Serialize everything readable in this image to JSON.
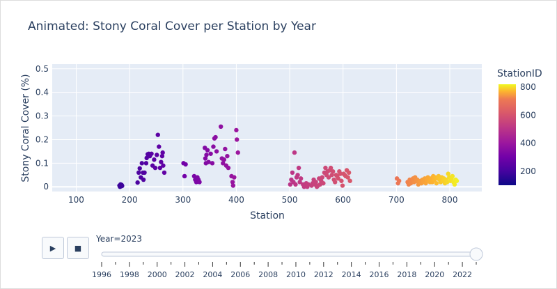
{
  "chart_data": {
    "type": "scatter",
    "title": "Animated: Stony Coral Cover per Station by Year",
    "xlabel": "Station",
    "ylabel": "Stony Coral Cover (%)",
    "xlim": [
      55,
      860
    ],
    "ylim": [
      -0.02,
      0.52
    ],
    "x_ticks": [
      "100",
      "200",
      "300",
      "400",
      "500",
      "600",
      "700",
      "800"
    ],
    "y_ticks": [
      "0",
      "0.1",
      "0.2",
      "0.3",
      "0.4",
      "0.5"
    ],
    "grid": true,
    "colorbar": {
      "title": "StationID",
      "range": [
        100,
        820
      ],
      "ticks": [
        "200",
        "400",
        "600",
        "800"
      ]
    },
    "points": [
      [
        181,
        0.005
      ],
      [
        182,
        0.0
      ],
      [
        183,
        0.01
      ],
      [
        184,
        0.002
      ],
      [
        185,
        0.008
      ],
      [
        186,
        0.004
      ],
      [
        215,
        0.018
      ],
      [
        217,
        0.06
      ],
      [
        219,
        0.078
      ],
      [
        221,
        0.04
      ],
      [
        223,
        0.1
      ],
      [
        225,
        0.06
      ],
      [
        226,
        0.03
      ],
      [
        228,
        0.06
      ],
      [
        231,
        0.1
      ],
      [
        232,
        0.122
      ],
      [
        234,
        0.138
      ],
      [
        236,
        0.14
      ],
      [
        238,
        0.13
      ],
      [
        241,
        0.14
      ],
      [
        243,
        0.09
      ],
      [
        246,
        0.115
      ],
      [
        248,
        0.08
      ],
      [
        251,
        0.135
      ],
      [
        253,
        0.22
      ],
      [
        255,
        0.17
      ],
      [
        257,
        0.08
      ],
      [
        259,
        0.105
      ],
      [
        261,
        0.13
      ],
      [
        262,
        0.145
      ],
      [
        263,
        0.09
      ],
      [
        265,
        0.06
      ],
      [
        301,
        0.1
      ],
      [
        303,
        0.045
      ],
      [
        305,
        0.095
      ],
      [
        321,
        0.045
      ],
      [
        323,
        0.03
      ],
      [
        325,
        0.02
      ],
      [
        327,
        0.04
      ],
      [
        329,
        0.03
      ],
      [
        331,
        0.02
      ],
      [
        341,
        0.165
      ],
      [
        342,
        0.12
      ],
      [
        343,
        0.1
      ],
      [
        344,
        0.135
      ],
      [
        346,
        0.155
      ],
      [
        348,
        0.105
      ],
      [
        352,
        0.14
      ],
      [
        355,
        0.1
      ],
      [
        357,
        0.17
      ],
      [
        359,
        0.205
      ],
      [
        361,
        0.21
      ],
      [
        363,
        0.15
      ],
      [
        371,
        0.255
      ],
      [
        373,
        0.12
      ],
      [
        375,
        0.1
      ],
      [
        377,
        0.115
      ],
      [
        379,
        0.16
      ],
      [
        381,
        0.09
      ],
      [
        383,
        0.13
      ],
      [
        385,
        0.08
      ],
      [
        391,
        0.045
      ],
      [
        393,
        0.02
      ],
      [
        394,
        0.005
      ],
      [
        396,
        0.04
      ],
      [
        400,
        0.24
      ],
      [
        401,
        0.2
      ],
      [
        403,
        0.145
      ],
      [
        501,
        0.01
      ],
      [
        503,
        0.03
      ],
      [
        505,
        0.06
      ],
      [
        507,
        0.02
      ],
      [
        509,
        0.145
      ],
      [
        511,
        0.01
      ],
      [
        513,
        0.04
      ],
      [
        515,
        0.05
      ],
      [
        517,
        0.08
      ],
      [
        519,
        0.02
      ],
      [
        521,
        0.035
      ],
      [
        525,
        0.01
      ],
      [
        527,
        0.0
      ],
      [
        529,
        0.005
      ],
      [
        531,
        0.015
      ],
      [
        533,
        0.0
      ],
      [
        535,
        0.01
      ],
      [
        541,
        0.005
      ],
      [
        543,
        0.015
      ],
      [
        545,
        0.03
      ],
      [
        547,
        0.01
      ],
      [
        549,
        0.02
      ],
      [
        551,
        0.0
      ],
      [
        553,
        0.005
      ],
      [
        555,
        0.035
      ],
      [
        557,
        0.01
      ],
      [
        559,
        0.025
      ],
      [
        561,
        0.04
      ],
      [
        563,
        0.015
      ],
      [
        565,
        0.06
      ],
      [
        567,
        0.08
      ],
      [
        569,
        0.05
      ],
      [
        571,
        0.065
      ],
      [
        573,
        0.04
      ],
      [
        575,
        0.07
      ],
      [
        577,
        0.08
      ],
      [
        579,
        0.05
      ],
      [
        581,
        0.065
      ],
      [
        583,
        0.03
      ],
      [
        585,
        0.02
      ],
      [
        587,
        0.05
      ],
      [
        589,
        0.045
      ],
      [
        591,
        0.035
      ],
      [
        593,
        0.065
      ],
      [
        595,
        0.055
      ],
      [
        597,
        0.025
      ],
      [
        599,
        0.005
      ],
      [
        601,
        0.055
      ],
      [
        603,
        0.05
      ],
      [
        605,
        0.045
      ],
      [
        607,
        0.07
      ],
      [
        609,
        0.04
      ],
      [
        611,
        0.06
      ],
      [
        613,
        0.025
      ],
      [
        701,
        0.035
      ],
      [
        703,
        0.015
      ],
      [
        705,
        0.025
      ],
      [
        721,
        0.02
      ],
      [
        723,
        0.01
      ],
      [
        725,
        0.03
      ],
      [
        727,
        0.015
      ],
      [
        729,
        0.02
      ],
      [
        731,
        0.035
      ],
      [
        733,
        0.02
      ],
      [
        735,
        0.04
      ],
      [
        737,
        0.025
      ],
      [
        739,
        0.03
      ],
      [
        741,
        0.01
      ],
      [
        743,
        0.02
      ],
      [
        745,
        0.025
      ],
      [
        747,
        0.015
      ],
      [
        749,
        0.03
      ],
      [
        751,
        0.02
      ],
      [
        753,
        0.035
      ],
      [
        755,
        0.015
      ],
      [
        757,
        0.03
      ],
      [
        759,
        0.04
      ],
      [
        761,
        0.025
      ],
      [
        763,
        0.02
      ],
      [
        765,
        0.035
      ],
      [
        767,
        0.02
      ],
      [
        769,
        0.045
      ],
      [
        771,
        0.03
      ],
      [
        773,
        0.04
      ],
      [
        775,
        0.015
      ],
      [
        777,
        0.035
      ],
      [
        779,
        0.045
      ],
      [
        781,
        0.03
      ],
      [
        783,
        0.02
      ],
      [
        785,
        0.04
      ],
      [
        787,
        0.025
      ],
      [
        789,
        0.035
      ],
      [
        791,
        0.015
      ],
      [
        793,
        0.03
      ],
      [
        795,
        0.02
      ],
      [
        797,
        0.055
      ],
      [
        799,
        0.04
      ],
      [
        801,
        0.025
      ],
      [
        803,
        0.035
      ],
      [
        805,
        0.045
      ],
      [
        807,
        0.02
      ],
      [
        809,
        0.01
      ],
      [
        811,
        0.03
      ],
      [
        813,
        0.025
      ]
    ]
  },
  "controls": {
    "play_icon": "play-icon",
    "stop_icon": "stop-icon",
    "slider_prefix": "Year=",
    "current_year": "2023",
    "year_range": [
      1996,
      2023
    ],
    "year_labels": [
      "1996",
      "1998",
      "2000",
      "2002",
      "2004",
      "2006",
      "2008",
      "2010",
      "2012",
      "2014",
      "2016",
      "2018",
      "2020",
      "2022"
    ]
  }
}
